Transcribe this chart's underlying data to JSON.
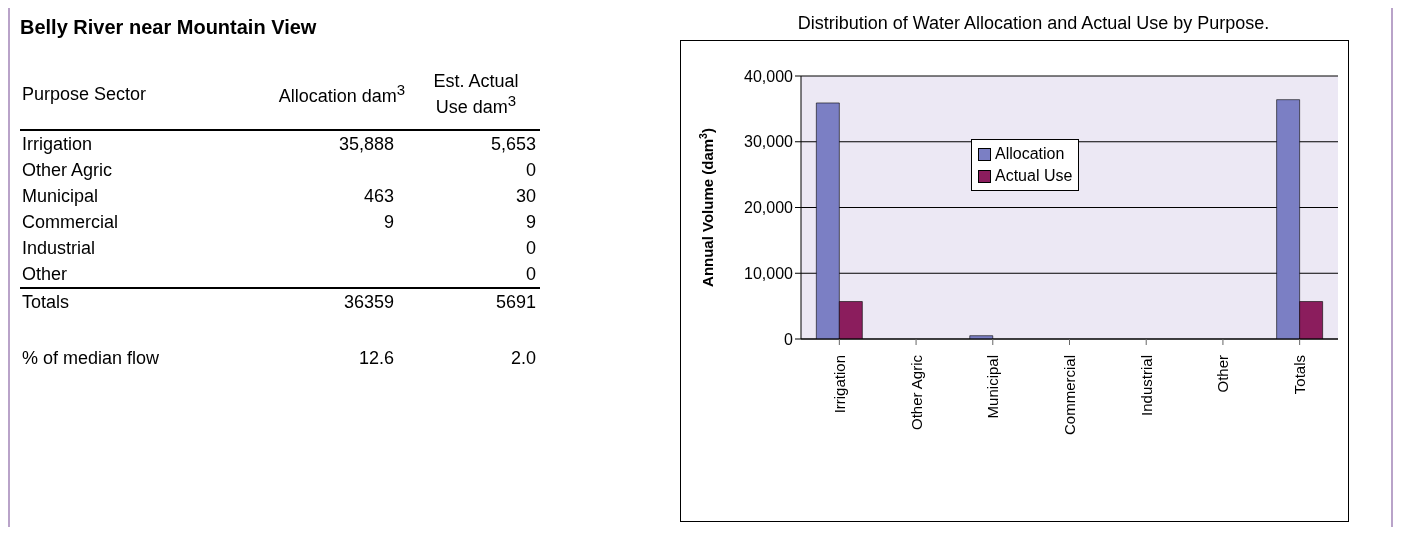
{
  "chart_data": [
    {
      "type": "other",
      "title": "Belly River near Mountain View",
      "annotations": [
        "Purpose Sector",
        "Allocation dam$^{3}$",
        "Est. Actual Use dam$^{3}$",
        "Irrigation",
        "35,888",
        "5,653",
        "Other Agric",
        null,
        "0",
        "Municipal",
        "463",
        "30",
        "Commercial",
        "9",
        "9",
        "Industrial",
        null,
        "0",
        "Other",
        null,
        "0",
        "Totals",
        "36359",
        "5691",
        "% of median flow",
        "12.6",
        "2.0"
      ]
    },
    {
      "type": "bar",
      "title": "Distribution of Water Allocation and Actual Use by Purpose.",
      "ylabel": "Annual Volume (dam$^{3}$)",
      "categories": [
        "Irrigation",
        "Other Agric",
        "Municipal",
        "Commercial",
        "Industrial",
        "Other",
        "Totals"
      ],
      "series": [
        {
          "name": "Allocation",
          "color": "#7b7fc4",
          "values": [
            35900,
            null,
            500,
            0,
            null,
            null,
            36400
          ]
        },
        {
          "name": "Actual Use",
          "color": "#8b1d5d",
          "values": [
            5700,
            0,
            0,
            0,
            0,
            0,
            5700
          ]
        }
      ],
      "ylim": [
        0,
        40000
      ],
      "yticks": [
        {
          "value": 0,
          "label": "0"
        },
        {
          "value": 10000,
          "label": "10,000"
        },
        {
          "value": 20000,
          "label": "20,000"
        },
        {
          "value": 30000,
          "label": "30,000"
        },
        {
          "value": 40000,
          "label": "40,000"
        }
      ],
      "grid": "y",
      "legend": "top"
    }
  ]
}
